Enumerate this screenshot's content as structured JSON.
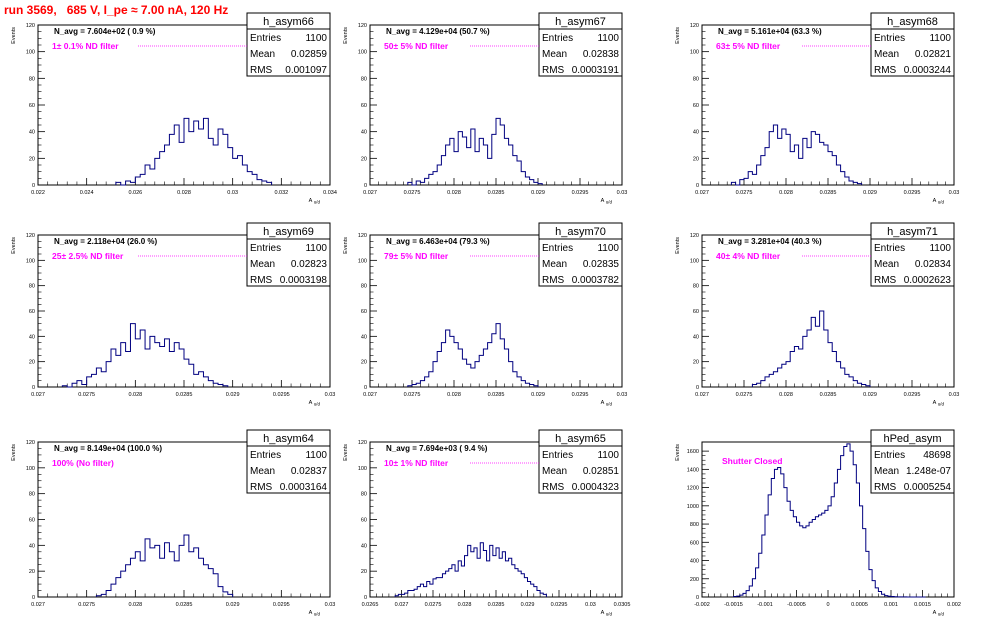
{
  "page": {
    "title": "run 3569,   685 V, I_pe ≈ 7.00 nA, 120 Hz"
  },
  "stats_labels": {
    "entries": "Entries",
    "mean": "Mean",
    "rms": "RMS"
  },
  "colors": {
    "histogram": "#000080",
    "annotation": "#ff00ff",
    "title": "#ff0000",
    "axis": "#000000"
  },
  "chart_data": [
    {
      "type": "bar",
      "name": "h_asym66",
      "navg": "N_avg = 7.604e+02 ( 0.9 %)",
      "filter": "1± 0.1% ND filter",
      "entries": "1100",
      "mean": "0.02859",
      "rms": "0.001097",
      "xlim": [
        0.022,
        0.034
      ],
      "ylim": [
        0,
        120
      ],
      "ylabel": "Events",
      "xlabel": "A_u/d",
      "xticks": [
        "0.022",
        "0.024",
        "0.026",
        "0.028",
        "0.03",
        "0.032",
        "0.034"
      ],
      "yticks": [
        "0",
        "20",
        "40",
        "60",
        "80",
        "100",
        "120"
      ],
      "bins_x": [
        0.0252,
        0.0254,
        0.0256,
        0.0258,
        0.026,
        0.0262,
        0.0264,
        0.0266,
        0.0268,
        0.027,
        0.0272,
        0.0274,
        0.0276,
        0.0278,
        0.028,
        0.0282,
        0.0284,
        0.0286,
        0.0288,
        0.029,
        0.0292,
        0.0294,
        0.0296,
        0.0298,
        0.03,
        0.0302,
        0.0304,
        0.0306,
        0.0308,
        0.031,
        0.0312,
        0.0314
      ],
      "values": [
        2,
        0,
        3,
        2,
        6,
        8,
        15,
        12,
        20,
        25,
        30,
        38,
        45,
        32,
        50,
        40,
        48,
        42,
        50,
        35,
        30,
        42,
        38,
        28,
        20,
        22,
        15,
        10,
        8,
        4,
        3,
        2
      ]
    },
    {
      "type": "bar",
      "name": "h_asym67",
      "navg": "N_avg = 4.129e+04 (50.7 %)",
      "filter": "50± 5% ND filter",
      "entries": "1100",
      "mean": "0.02838",
      "rms": "0.0003191",
      "xlim": [
        0.027,
        0.03
      ],
      "ylim": [
        0,
        120
      ],
      "ylabel": "Events",
      "xlabel": "A_u/d",
      "xticks": [
        "0.027",
        "0.0275",
        "0.028",
        "0.0285",
        "0.029",
        "0.0295",
        "0.03"
      ],
      "yticks": [
        "0",
        "20",
        "40",
        "60",
        "80",
        "100",
        "120"
      ],
      "bins_x": [
        0.02745,
        0.0275,
        0.02755,
        0.0276,
        0.02765,
        0.0277,
        0.02775,
        0.0278,
        0.02785,
        0.0279,
        0.02795,
        0.028,
        0.02805,
        0.0281,
        0.02815,
        0.0282,
        0.02825,
        0.0283,
        0.02835,
        0.0284,
        0.02845,
        0.0285,
        0.02855,
        0.0286,
        0.02865,
        0.0287,
        0.02875,
        0.0288,
        0.02885,
        0.0289,
        0.02895,
        0.029
      ],
      "values": [
        2,
        0,
        3,
        2,
        5,
        8,
        10,
        15,
        22,
        30,
        35,
        25,
        40,
        36,
        28,
        42,
        25,
        35,
        30,
        20,
        38,
        50,
        45,
        35,
        30,
        22,
        18,
        10,
        6,
        4,
        2,
        1
      ]
    },
    {
      "type": "bar",
      "name": "h_asym68",
      "navg": "N_avg = 5.161e+04 (63.3 %)",
      "filter": "63± 5% ND filter",
      "entries": "1100",
      "mean": "0.02821",
      "rms": "0.0003244",
      "xlim": [
        0.027,
        0.03
      ],
      "ylim": [
        0,
        120
      ],
      "ylabel": "Events",
      "xlabel": "A_u/d",
      "xticks": [
        "0.027",
        "0.0275",
        "0.028",
        "0.0285",
        "0.029",
        "0.0295",
        "0.03"
      ],
      "yticks": [
        "0",
        "20",
        "40",
        "60",
        "80",
        "100",
        "120"
      ],
      "bins_x": [
        0.02735,
        0.0274,
        0.02745,
        0.0275,
        0.02755,
        0.0276,
        0.02765,
        0.0277,
        0.02775,
        0.0278,
        0.02785,
        0.0279,
        0.02795,
        0.028,
        0.02805,
        0.0281,
        0.02815,
        0.0282,
        0.02825,
        0.0283,
        0.02835,
        0.0284,
        0.02845,
        0.0285,
        0.02855,
        0.0286,
        0.02865,
        0.0287,
        0.02875,
        0.0288,
        0.02885
      ],
      "values": [
        2,
        0,
        4,
        5,
        10,
        8,
        15,
        22,
        28,
        40,
        45,
        35,
        42,
        38,
        25,
        30,
        20,
        35,
        28,
        40,
        38,
        32,
        30,
        25,
        22,
        15,
        10,
        6,
        3,
        2,
        1
      ]
    },
    {
      "type": "bar",
      "name": "h_asym69",
      "navg": "N_avg = 2.118e+04 (26.0 %)",
      "filter": "25± 2.5% ND filter",
      "entries": "1100",
      "mean": "0.02823",
      "rms": "0.0003198",
      "xlim": [
        0.027,
        0.03
      ],
      "ylim": [
        0,
        120
      ],
      "ylabel": "Events",
      "xlabel": "A_u/d",
      "xticks": [
        "0.027",
        "0.0275",
        "0.028",
        "0.0285",
        "0.029",
        "0.0295",
        "0.03"
      ],
      "yticks": [
        "0",
        "20",
        "40",
        "60",
        "80",
        "100",
        "120"
      ],
      "bins_x": [
        0.02725,
        0.0273,
        0.02735,
        0.0274,
        0.02745,
        0.0275,
        0.02755,
        0.0276,
        0.02765,
        0.0277,
        0.02775,
        0.0278,
        0.02785,
        0.0279,
        0.02795,
        0.028,
        0.02805,
        0.0281,
        0.02815,
        0.0282,
        0.02825,
        0.0283,
        0.02835,
        0.0284,
        0.02845,
        0.0285,
        0.02855,
        0.0286,
        0.02865,
        0.0287,
        0.02875,
        0.0288,
        0.02885,
        0.0289
      ],
      "values": [
        1,
        0,
        3,
        5,
        2,
        8,
        10,
        15,
        12,
        20,
        30,
        25,
        35,
        28,
        50,
        38,
        45,
        30,
        40,
        35,
        32,
        38,
        28,
        35,
        30,
        22,
        18,
        10,
        12,
        8,
        5,
        3,
        2,
        1
      ]
    },
    {
      "type": "bar",
      "name": "h_asym70",
      "navg": "N_avg = 6.463e+04 (79.3 %)",
      "filter": "79± 5% ND filter",
      "entries": "1100",
      "mean": "0.02835",
      "rms": "0.0003782",
      "xlim": [
        0.027,
        0.03
      ],
      "ylim": [
        0,
        120
      ],
      "ylabel": "Events",
      "xlabel": "A_u/d",
      "xticks": [
        "0.027",
        "0.0275",
        "0.028",
        "0.0285",
        "0.029",
        "0.0295",
        "0.03"
      ],
      "yticks": [
        "0",
        "20",
        "40",
        "60",
        "80",
        "100",
        "120"
      ],
      "bins_x": [
        0.02745,
        0.0275,
        0.02755,
        0.0276,
        0.02765,
        0.0277,
        0.02775,
        0.0278,
        0.02785,
        0.0279,
        0.02795,
        0.028,
        0.02805,
        0.0281,
        0.02815,
        0.0282,
        0.02825,
        0.0283,
        0.02835,
        0.0284,
        0.02845,
        0.0285,
        0.02855,
        0.0286,
        0.02865,
        0.0287,
        0.02875,
        0.0288,
        0.02885,
        0.0289,
        0.02895
      ],
      "values": [
        1,
        2,
        3,
        5,
        8,
        12,
        20,
        28,
        35,
        45,
        40,
        35,
        30,
        22,
        18,
        15,
        20,
        25,
        30,
        35,
        42,
        50,
        38,
        30,
        20,
        12,
        8,
        5,
        3,
        2,
        1
      ]
    },
    {
      "type": "bar",
      "name": "h_asym71",
      "navg": "N_avg = 3.281e+04 (40.3 %)",
      "filter": "40± 4% ND filter",
      "entries": "1100",
      "mean": "0.02834",
      "rms": "0.0002623",
      "xlim": [
        0.027,
        0.03
      ],
      "ylim": [
        0,
        120
      ],
      "ylabel": "Events",
      "xlabel": "A_u/d",
      "xticks": [
        "0.027",
        "0.0275",
        "0.028",
        "0.0285",
        "0.029",
        "0.0295",
        "0.03"
      ],
      "yticks": [
        "0",
        "20",
        "40",
        "60",
        "80",
        "100",
        "120"
      ],
      "bins_x": [
        0.0276,
        0.02765,
        0.0277,
        0.02775,
        0.0278,
        0.02785,
        0.0279,
        0.02795,
        0.028,
        0.02805,
        0.0281,
        0.02815,
        0.0282,
        0.02825,
        0.0283,
        0.02835,
        0.0284,
        0.02845,
        0.0285,
        0.02855,
        0.0286,
        0.02865,
        0.0287,
        0.02875,
        0.0288,
        0.02885,
        0.0289,
        0.02895
      ],
      "values": [
        2,
        3,
        5,
        8,
        10,
        12,
        15,
        18,
        20,
        28,
        32,
        30,
        40,
        45,
        55,
        48,
        60,
        45,
        35,
        28,
        20,
        15,
        10,
        8,
        5,
        3,
        2,
        1
      ]
    },
    {
      "type": "bar",
      "name": "h_asym64",
      "navg": "N_avg = 8.149e+04 (100.0 %)",
      "filter": "100% (No filter)",
      "entries": "1100",
      "mean": "0.02837",
      "rms": "0.0003164",
      "xlim": [
        0.027,
        0.03
      ],
      "ylim": [
        0,
        120
      ],
      "ylabel": "Events",
      "xlabel": "A_u/d",
      "xticks": [
        "0.027",
        "0.0275",
        "0.028",
        "0.0285",
        "0.029",
        "0.0295",
        "0.03"
      ],
      "yticks": [
        "0",
        "20",
        "40",
        "60",
        "80",
        "100",
        "120"
      ],
      "bins_x": [
        0.0276,
        0.02765,
        0.0277,
        0.02775,
        0.0278,
        0.02785,
        0.0279,
        0.02795,
        0.028,
        0.02805,
        0.0281,
        0.02815,
        0.0282,
        0.02825,
        0.0283,
        0.02835,
        0.0284,
        0.02845,
        0.0285,
        0.02855,
        0.0286,
        0.02865,
        0.0287,
        0.02875,
        0.0288,
        0.02885,
        0.0289,
        0.02895
      ],
      "values": [
        1,
        2,
        5,
        10,
        15,
        20,
        25,
        30,
        35,
        28,
        45,
        38,
        40,
        30,
        42,
        35,
        28,
        40,
        48,
        35,
        38,
        30,
        25,
        22,
        18,
        8,
        4,
        2
      ]
    },
    {
      "type": "bar",
      "name": "h_asym65",
      "navg": "N_avg = 7.694e+03 ( 9.4 %)",
      "filter": "10± 1% ND filter",
      "entries": "1100",
      "mean": "0.02851",
      "rms": "0.0004323",
      "xlim": [
        0.0265,
        0.0305
      ],
      "ylim": [
        0,
        120
      ],
      "ylabel": "Events",
      "xlabel": "A_u/d",
      "xticks": [
        "0.0265",
        "0.027",
        "0.0275",
        "0.028",
        "0.0285",
        "0.029",
        "0.0295",
        "0.03",
        "0.0305"
      ],
      "yticks": [
        "0",
        "20",
        "40",
        "60",
        "80",
        "100",
        "120"
      ],
      "bins_x": [
        0.0269,
        0.02695,
        0.027,
        0.02705,
        0.0271,
        0.02715,
        0.0272,
        0.02725,
        0.0273,
        0.02735,
        0.0274,
        0.02745,
        0.0275,
        0.02755,
        0.0276,
        0.02765,
        0.0277,
        0.02775,
        0.0278,
        0.02785,
        0.0279,
        0.02795,
        0.028,
        0.02805,
        0.0281,
        0.02815,
        0.0282,
        0.02825,
        0.0283,
        0.02835,
        0.0284,
        0.02845,
        0.0285,
        0.02855,
        0.0286,
        0.02865,
        0.0287,
        0.02875,
        0.0288,
        0.02885,
        0.0289,
        0.02895,
        0.029,
        0.02905,
        0.0291,
        0.02915,
        0.0292,
        0.02925
      ],
      "values": [
        1,
        2,
        2,
        3,
        5,
        5,
        6,
        8,
        10,
        8,
        12,
        10,
        14,
        15,
        15,
        18,
        20,
        22,
        25,
        20,
        28,
        24,
        32,
        40,
        35,
        38,
        30,
        42,
        36,
        28,
        40,
        32,
        38,
        30,
        35,
        28,
        30,
        25,
        22,
        20,
        18,
        15,
        12,
        10,
        8,
        5,
        3,
        2
      ]
    },
    {
      "type": "bar",
      "name": "hPed_asym",
      "navg": "",
      "filter": "Shutter Closed",
      "entries": "48698",
      "mean": "1.248e-07",
      "rms": "0.0005254",
      "xlim": [
        -0.002,
        0.002
      ],
      "ylim": [
        0,
        1700
      ],
      "ylabel": "Events",
      "xlabel": "A_u/d",
      "xticks": [
        "-0.002",
        "-0.0015",
        "-0.001",
        "-0.0005",
        "0",
        "0.0005",
        "0.001",
        "0.0015",
        "0.002"
      ],
      "yticks": [
        "0",
        "200",
        "400",
        "600",
        "800",
        "1000",
        "1200",
        "1400",
        "1600"
      ],
      "bins_x": [
        -0.0015,
        -0.00145,
        -0.0014,
        -0.00135,
        -0.0013,
        -0.00125,
        -0.0012,
        -0.00115,
        -0.0011,
        -0.00105,
        -0.001,
        -0.00095,
        -0.0009,
        -0.00085,
        -0.0008,
        -0.00075,
        -0.0007,
        -0.00065,
        -0.0006,
        -0.00055,
        -0.0005,
        -0.00045,
        -0.0004,
        -0.00035,
        -0.0003,
        -0.00025,
        -0.0002,
        -0.00015,
        -0.0001,
        -5e-05,
        0,
        5e-05,
        0.0001,
        0.00015,
        0.0002,
        0.00025,
        0.0003,
        0.00035,
        0.0004,
        0.00045,
        0.0005,
        0.00055,
        0.0006,
        0.00065,
        0.0007,
        0.00075,
        0.0008,
        0.00085,
        0.0009,
        0.00095,
        0.001,
        0.00105,
        0.0011,
        0.00115,
        0.0012,
        0.00125,
        0.0013,
        0.00135,
        0.0014,
        0.00145,
        0.0015
      ],
      "values": [
        5,
        10,
        20,
        40,
        70,
        120,
        200,
        320,
        480,
        680,
        900,
        1120,
        1300,
        1400,
        1420,
        1350,
        1200,
        1050,
        950,
        880,
        820,
        780,
        760,
        780,
        820,
        850,
        880,
        900,
        920,
        950,
        1000,
        1100,
        1250,
        1400,
        1550,
        1650,
        1680,
        1600,
        1450,
        1250,
        1000,
        750,
        500,
        300,
        180,
        100,
        60,
        30,
        15,
        8,
        5,
        3,
        2,
        1,
        1,
        0,
        0,
        0,
        0,
        0,
        0
      ]
    }
  ]
}
